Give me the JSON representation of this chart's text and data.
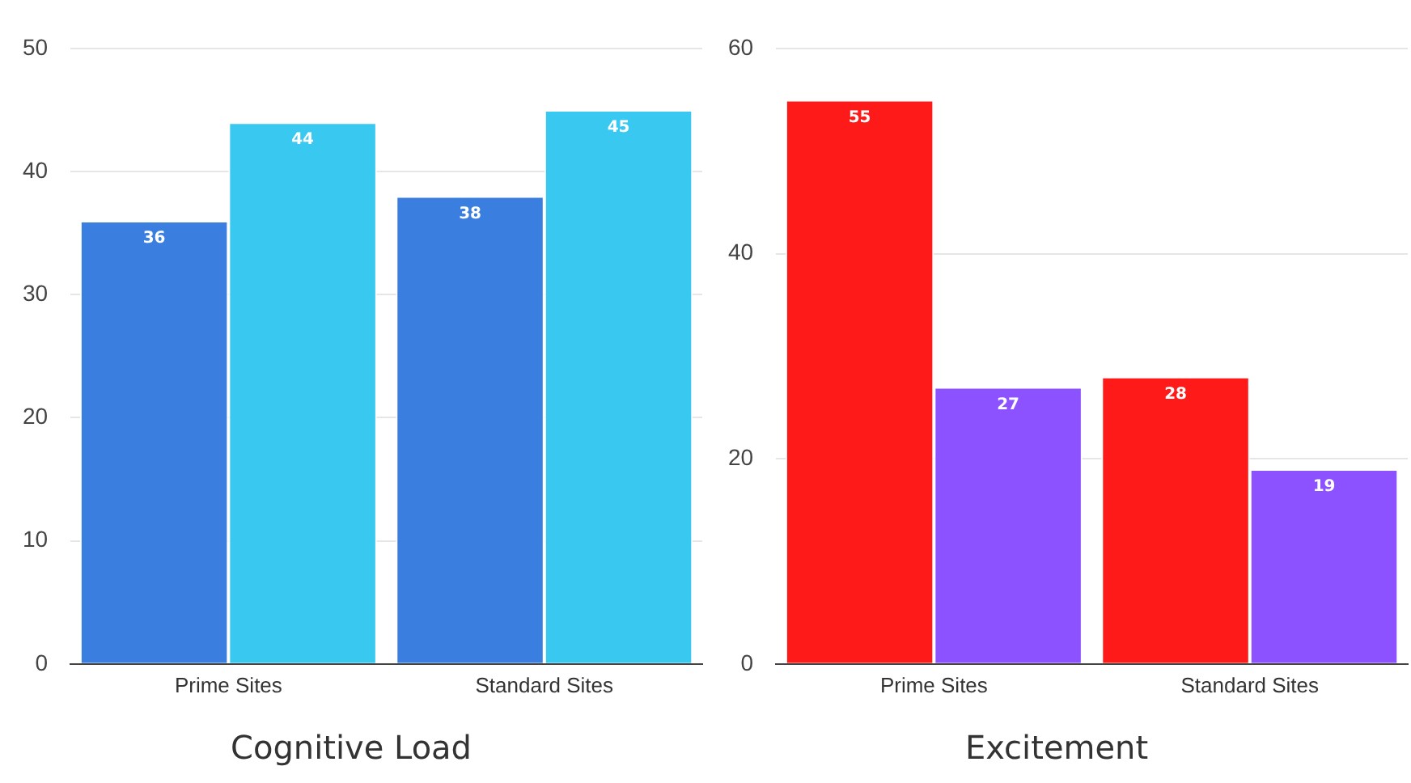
{
  "chart_data": [
    {
      "type": "bar",
      "title": "Cognitive Load",
      "categories": [
        "Prime Sites",
        "Standard Sites"
      ],
      "series": [
        {
          "color": "#3a7ee0",
          "values": [
            36,
            38
          ]
        },
        {
          "color": "#38c8f0",
          "values": [
            44,
            45
          ]
        }
      ],
      "ylim": [
        0,
        50
      ],
      "yticks": [
        0,
        10,
        20,
        30,
        40,
        50
      ],
      "grid": "y",
      "data_labels": true,
      "legend": false
    },
    {
      "type": "bar",
      "title": "Excitement",
      "categories": [
        "Prime Sites",
        "Standard Sites"
      ],
      "series": [
        {
          "color": "#ff1a1a",
          "values": [
            55,
            28
          ]
        },
        {
          "color": "#8c52ff",
          "values": [
            27,
            19
          ]
        }
      ],
      "ylim": [
        0,
        60
      ],
      "yticks": [
        0,
        20,
        40,
        60
      ],
      "grid": "y",
      "data_labels": true,
      "legend": false
    }
  ]
}
